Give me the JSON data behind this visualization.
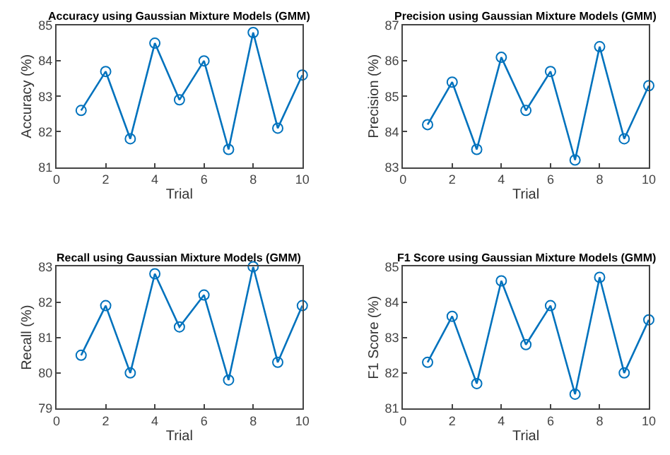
{
  "chart_data": [
    {
      "type": "line",
      "title": "Accuracy using Gaussian Mixture Models (GMM)",
      "xlabel": "Trial",
      "ylabel": "Accuracy (%)",
      "x": [
        1,
        2,
        3,
        4,
        5,
        6,
        7,
        8,
        9,
        10
      ],
      "series": [
        {
          "color": "#0072bd",
          "values": [
            82.6,
            83.7,
            81.8,
            84.5,
            82.9,
            84.0,
            81.5,
            84.8,
            82.1,
            83.6
          ]
        }
      ],
      "xlim": [
        0,
        10
      ],
      "xticks": [
        0,
        2,
        4,
        6,
        8,
        10
      ],
      "ylim": [
        81,
        85
      ],
      "yticks": [
        81,
        82,
        83,
        84,
        85
      ],
      "marker": "circle",
      "line_style": "solid"
    },
    {
      "type": "line",
      "title": "Precision using Gaussian Mixture Models (GMM)",
      "xlabel": "Trial",
      "ylabel": "Precision (%)",
      "x": [
        1,
        2,
        3,
        4,
        5,
        6,
        7,
        8,
        9,
        10
      ],
      "series": [
        {
          "color": "#0072bd",
          "values": [
            84.2,
            85.4,
            83.5,
            86.1,
            84.6,
            85.7,
            83.2,
            86.4,
            83.8,
            85.3
          ]
        }
      ],
      "xlim": [
        0,
        10
      ],
      "xticks": [
        0,
        2,
        4,
        6,
        8,
        10
      ],
      "ylim": [
        83,
        87
      ],
      "yticks": [
        83,
        84,
        85,
        86,
        87
      ],
      "marker": "circle",
      "line_style": "solid"
    },
    {
      "type": "line",
      "title": "Recall using Gaussian Mixture Models (GMM)",
      "xlabel": "Trial",
      "ylabel": "Recall (%)",
      "x": [
        1,
        2,
        3,
        4,
        5,
        6,
        7,
        8,
        9,
        10
      ],
      "series": [
        {
          "color": "#0072bd",
          "values": [
            80.5,
            81.9,
            80.0,
            82.8,
            81.3,
            82.2,
            79.8,
            83.0,
            80.3,
            81.9
          ]
        }
      ],
      "xlim": [
        0,
        10
      ],
      "xticks": [
        0,
        2,
        4,
        6,
        8,
        10
      ],
      "ylim": [
        79,
        83
      ],
      "yticks": [
        79,
        80,
        81,
        82,
        83
      ],
      "marker": "circle",
      "line_style": "solid"
    },
    {
      "type": "line",
      "title": "F1 Score using Gaussian Mixture Models (GMM)",
      "xlabel": "Trial",
      "ylabel": "F1 Score (%)",
      "x": [
        1,
        2,
        3,
        4,
        5,
        6,
        7,
        8,
        9,
        10
      ],
      "series": [
        {
          "color": "#0072bd",
          "values": [
            82.3,
            83.6,
            81.7,
            84.6,
            82.8,
            83.9,
            81.4,
            84.7,
            82.0,
            83.5
          ]
        }
      ],
      "xlim": [
        0,
        10
      ],
      "xticks": [
        0,
        2,
        4,
        6,
        8,
        10
      ],
      "ylim": [
        81,
        85
      ],
      "yticks": [
        81,
        82,
        83,
        84,
        85
      ],
      "marker": "circle",
      "line_style": "solid"
    }
  ]
}
